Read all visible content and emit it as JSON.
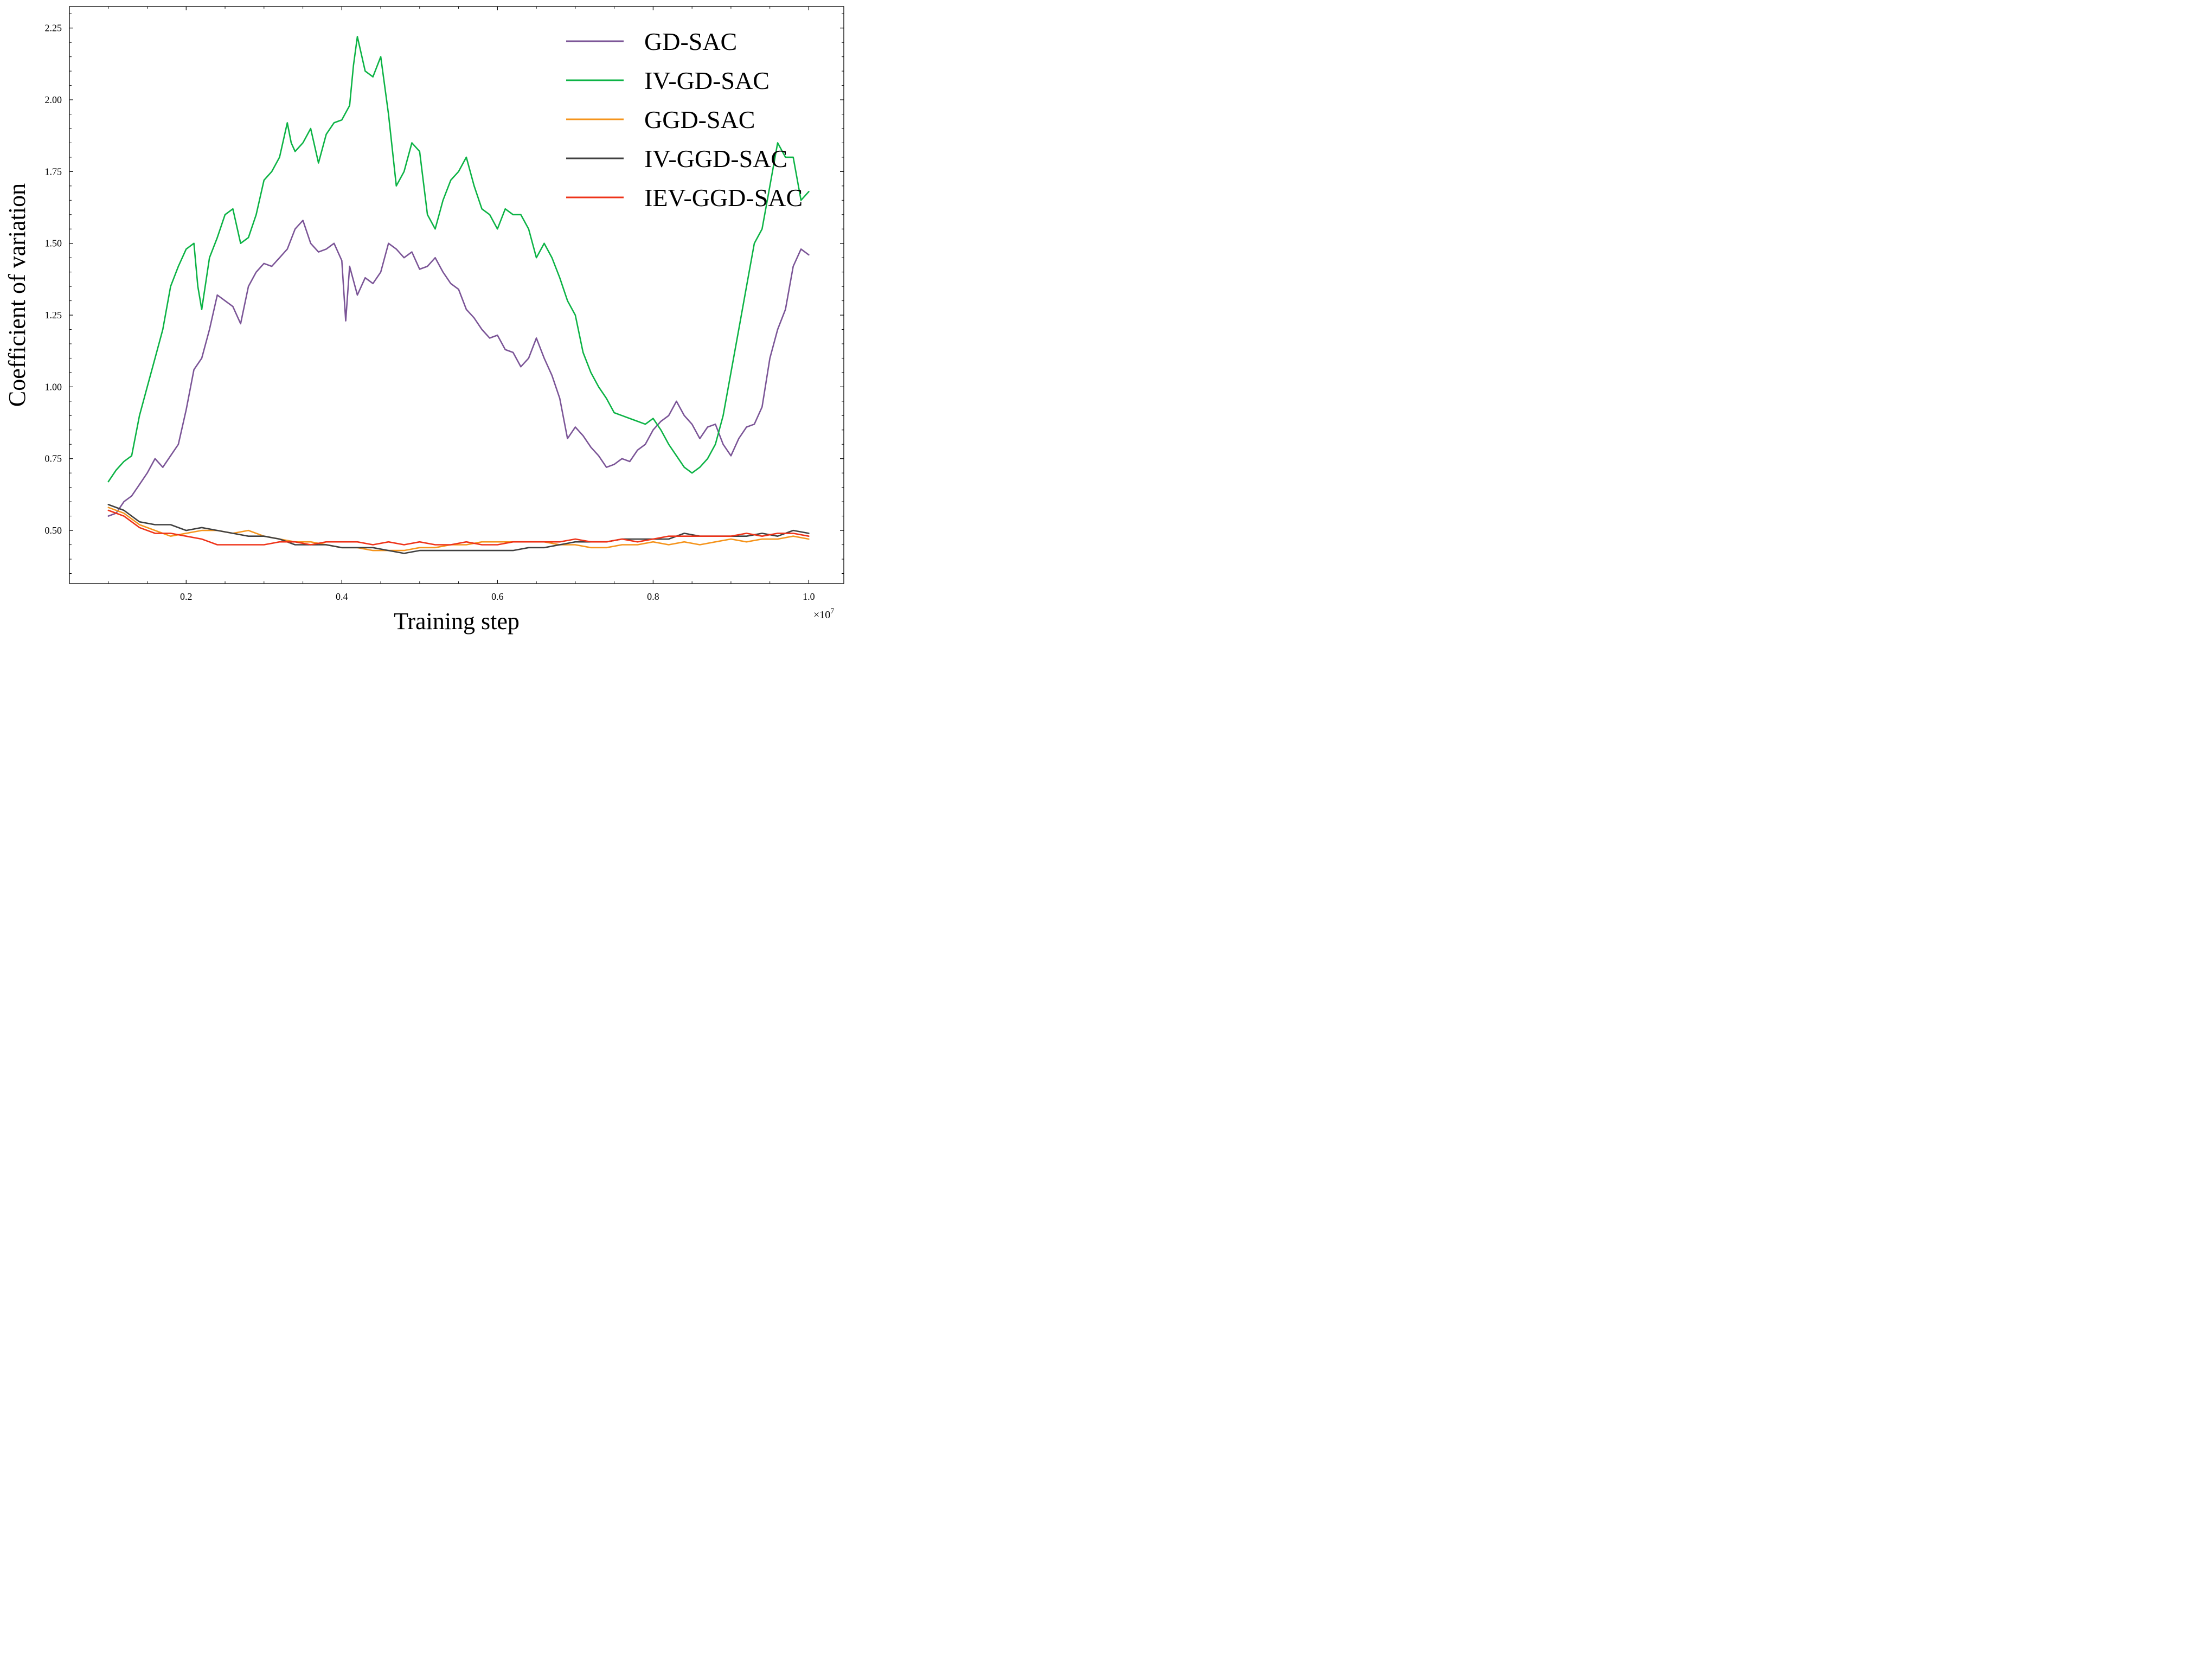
{
  "chart_data": {
    "type": "line",
    "title": "",
    "xlabel": "Training step",
    "ylabel": "Coefficient of variation",
    "x_offset_label": "×10",
    "x_offset_exponent": "7",
    "xlim": [
      0.05,
      1.045
    ],
    "ylim": [
      0.315,
      2.325
    ],
    "x_major_ticks": [
      0.2,
      0.4,
      0.6,
      0.8,
      1.0
    ],
    "x_tick_labels": [
      "0.2",
      "0.4",
      "0.6",
      "0.8",
      "1.0"
    ],
    "y_major_ticks": [
      0.5,
      0.75,
      1.0,
      1.25,
      1.5,
      1.75,
      2.0,
      2.25
    ],
    "y_tick_labels": [
      "0.50",
      "0.75",
      "1.00",
      "1.25",
      "1.50",
      "1.75",
      "2.00",
      "2.25"
    ],
    "legend_position": "top-right",
    "series": [
      {
        "name": "GD-SAC",
        "color": "#7B5597",
        "x": [
          0.1,
          0.11,
          0.12,
          0.13,
          0.14,
          0.15,
          0.16,
          0.17,
          0.18,
          0.19,
          0.2,
          0.21,
          0.22,
          0.23,
          0.24,
          0.25,
          0.26,
          0.27,
          0.28,
          0.29,
          0.3,
          0.31,
          0.32,
          0.33,
          0.34,
          0.35,
          0.36,
          0.37,
          0.38,
          0.39,
          0.4,
          0.405,
          0.41,
          0.42,
          0.43,
          0.44,
          0.45,
          0.46,
          0.47,
          0.48,
          0.49,
          0.5,
          0.51,
          0.52,
          0.53,
          0.54,
          0.55,
          0.56,
          0.57,
          0.58,
          0.59,
          0.6,
          0.61,
          0.62,
          0.63,
          0.64,
          0.65,
          0.66,
          0.67,
          0.68,
          0.69,
          0.7,
          0.71,
          0.72,
          0.73,
          0.74,
          0.75,
          0.76,
          0.77,
          0.78,
          0.79,
          0.8,
          0.81,
          0.82,
          0.83,
          0.84,
          0.85,
          0.86,
          0.87,
          0.88,
          0.89,
          0.9,
          0.91,
          0.92,
          0.93,
          0.94,
          0.95,
          0.96,
          0.97,
          0.98,
          0.99,
          1.0
        ],
        "y": [
          0.55,
          0.56,
          0.6,
          0.62,
          0.66,
          0.7,
          0.75,
          0.72,
          0.76,
          0.8,
          0.92,
          1.06,
          1.1,
          1.2,
          1.32,
          1.3,
          1.28,
          1.22,
          1.35,
          1.4,
          1.43,
          1.42,
          1.45,
          1.48,
          1.55,
          1.58,
          1.5,
          1.47,
          1.48,
          1.5,
          1.44,
          1.23,
          1.42,
          1.32,
          1.38,
          1.36,
          1.4,
          1.5,
          1.48,
          1.45,
          1.47,
          1.41,
          1.42,
          1.45,
          1.4,
          1.36,
          1.34,
          1.27,
          1.24,
          1.2,
          1.17,
          1.18,
          1.13,
          1.12,
          1.07,
          1.1,
          1.17,
          1.1,
          1.04,
          0.96,
          0.82,
          0.86,
          0.83,
          0.79,
          0.76,
          0.72,
          0.73,
          0.75,
          0.74,
          0.78,
          0.8,
          0.85,
          0.88,
          0.9,
          0.95,
          0.9,
          0.87,
          0.82,
          0.86,
          0.87,
          0.8,
          0.76,
          0.82,
          0.86,
          0.87,
          0.93,
          1.1,
          1.2,
          1.27,
          1.42,
          1.48,
          1.46
        ]
      },
      {
        "name": "IV-GD-SAC",
        "color": "#0CB345",
        "x": [
          0.1,
          0.11,
          0.12,
          0.13,
          0.14,
          0.15,
          0.16,
          0.17,
          0.18,
          0.19,
          0.2,
          0.21,
          0.215,
          0.22,
          0.23,
          0.24,
          0.25,
          0.26,
          0.27,
          0.28,
          0.29,
          0.3,
          0.31,
          0.32,
          0.33,
          0.335,
          0.34,
          0.35,
          0.36,
          0.37,
          0.38,
          0.39,
          0.4,
          0.41,
          0.415,
          0.42,
          0.43,
          0.44,
          0.45,
          0.46,
          0.47,
          0.48,
          0.49,
          0.5,
          0.51,
          0.52,
          0.53,
          0.54,
          0.55,
          0.56,
          0.57,
          0.58,
          0.59,
          0.6,
          0.61,
          0.62,
          0.63,
          0.64,
          0.65,
          0.66,
          0.67,
          0.68,
          0.69,
          0.7,
          0.71,
          0.72,
          0.73,
          0.74,
          0.75,
          0.76,
          0.77,
          0.78,
          0.79,
          0.8,
          0.81,
          0.82,
          0.83,
          0.84,
          0.85,
          0.86,
          0.87,
          0.88,
          0.89,
          0.9,
          0.91,
          0.92,
          0.93,
          0.94,
          0.95,
          0.96,
          0.97,
          0.98,
          0.99,
          1.0
        ],
        "y": [
          0.67,
          0.71,
          0.74,
          0.76,
          0.9,
          1.0,
          1.1,
          1.2,
          1.35,
          1.42,
          1.48,
          1.5,
          1.35,
          1.27,
          1.45,
          1.52,
          1.6,
          1.62,
          1.5,
          1.52,
          1.6,
          1.72,
          1.75,
          1.8,
          1.92,
          1.85,
          1.82,
          1.85,
          1.9,
          1.78,
          1.88,
          1.92,
          1.93,
          1.98,
          2.12,
          2.22,
          2.1,
          2.08,
          2.15,
          1.95,
          1.7,
          1.75,
          1.85,
          1.82,
          1.6,
          1.55,
          1.65,
          1.72,
          1.75,
          1.8,
          1.7,
          1.62,
          1.6,
          1.55,
          1.62,
          1.6,
          1.6,
          1.55,
          1.45,
          1.5,
          1.45,
          1.38,
          1.3,
          1.25,
          1.12,
          1.05,
          1.0,
          0.96,
          0.91,
          0.9,
          0.89,
          0.88,
          0.87,
          0.89,
          0.85,
          0.8,
          0.76,
          0.72,
          0.7,
          0.72,
          0.75,
          0.8,
          0.9,
          1.05,
          1.2,
          1.35,
          1.5,
          1.55,
          1.7,
          1.85,
          1.8,
          1.8,
          1.65,
          1.68
        ]
      },
      {
        "name": "GGD-SAC",
        "color": "#F5941C",
        "x": [
          0.1,
          0.12,
          0.14,
          0.16,
          0.18,
          0.2,
          0.22,
          0.24,
          0.26,
          0.28,
          0.3,
          0.32,
          0.34,
          0.36,
          0.38,
          0.4,
          0.42,
          0.44,
          0.46,
          0.48,
          0.5,
          0.52,
          0.54,
          0.56,
          0.58,
          0.6,
          0.62,
          0.64,
          0.66,
          0.68,
          0.7,
          0.72,
          0.74,
          0.76,
          0.78,
          0.8,
          0.82,
          0.84,
          0.86,
          0.88,
          0.9,
          0.92,
          0.94,
          0.96,
          0.98,
          1.0
        ],
        "y": [
          0.58,
          0.56,
          0.52,
          0.5,
          0.48,
          0.49,
          0.5,
          0.5,
          0.49,
          0.5,
          0.48,
          0.47,
          0.46,
          0.46,
          0.45,
          0.44,
          0.44,
          0.43,
          0.43,
          0.43,
          0.44,
          0.44,
          0.45,
          0.45,
          0.46,
          0.46,
          0.46,
          0.46,
          0.46,
          0.45,
          0.45,
          0.44,
          0.44,
          0.45,
          0.45,
          0.46,
          0.45,
          0.46,
          0.45,
          0.46,
          0.47,
          0.46,
          0.47,
          0.47,
          0.48,
          0.47
        ]
      },
      {
        "name": "IV-GGD-SAC",
        "color": "#404040",
        "x": [
          0.1,
          0.12,
          0.14,
          0.16,
          0.18,
          0.2,
          0.22,
          0.24,
          0.26,
          0.28,
          0.3,
          0.32,
          0.34,
          0.36,
          0.38,
          0.4,
          0.42,
          0.44,
          0.46,
          0.48,
          0.5,
          0.52,
          0.54,
          0.56,
          0.58,
          0.6,
          0.62,
          0.64,
          0.66,
          0.68,
          0.7,
          0.72,
          0.74,
          0.76,
          0.78,
          0.8,
          0.82,
          0.84,
          0.86,
          0.88,
          0.9,
          0.92,
          0.94,
          0.96,
          0.98,
          1.0
        ],
        "y": [
          0.59,
          0.57,
          0.53,
          0.52,
          0.52,
          0.5,
          0.51,
          0.5,
          0.49,
          0.48,
          0.48,
          0.47,
          0.45,
          0.45,
          0.45,
          0.44,
          0.44,
          0.44,
          0.43,
          0.42,
          0.43,
          0.43,
          0.43,
          0.43,
          0.43,
          0.43,
          0.43,
          0.44,
          0.44,
          0.45,
          0.46,
          0.46,
          0.46,
          0.47,
          0.47,
          0.47,
          0.47,
          0.49,
          0.48,
          0.48,
          0.48,
          0.48,
          0.49,
          0.48,
          0.5,
          0.49
        ]
      },
      {
        "name": "IEV-GGD-SAC",
        "color": "#EE3319",
        "x": [
          0.1,
          0.12,
          0.14,
          0.16,
          0.18,
          0.2,
          0.22,
          0.24,
          0.26,
          0.28,
          0.3,
          0.32,
          0.34,
          0.36,
          0.38,
          0.4,
          0.42,
          0.44,
          0.46,
          0.48,
          0.5,
          0.52,
          0.54,
          0.56,
          0.58,
          0.6,
          0.62,
          0.64,
          0.66,
          0.68,
          0.7,
          0.72,
          0.74,
          0.76,
          0.78,
          0.8,
          0.82,
          0.84,
          0.86,
          0.88,
          0.9,
          0.92,
          0.94,
          0.96,
          0.98,
          1.0
        ],
        "y": [
          0.57,
          0.55,
          0.51,
          0.49,
          0.49,
          0.48,
          0.47,
          0.45,
          0.45,
          0.45,
          0.45,
          0.46,
          0.46,
          0.45,
          0.46,
          0.46,
          0.46,
          0.45,
          0.46,
          0.45,
          0.46,
          0.45,
          0.45,
          0.46,
          0.45,
          0.45,
          0.46,
          0.46,
          0.46,
          0.46,
          0.47,
          0.46,
          0.46,
          0.47,
          0.46,
          0.47,
          0.48,
          0.48,
          0.48,
          0.48,
          0.48,
          0.49,
          0.48,
          0.49,
          0.49,
          0.48
        ]
      }
    ]
  }
}
